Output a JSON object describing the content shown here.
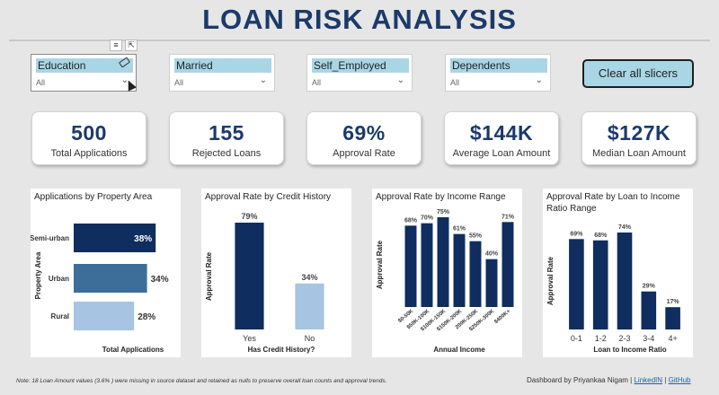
{
  "title": "LOAN RISK ANALYSIS",
  "slicers": [
    {
      "label": "Education",
      "value": "All"
    },
    {
      "label": "Married",
      "value": "All"
    },
    {
      "label": "Self_Employed",
      "value": "All"
    },
    {
      "label": "Dependents",
      "value": "All"
    }
  ],
  "clear_button": "Clear all slicers",
  "kpis": [
    {
      "value": "500",
      "caption": "Total Applications"
    },
    {
      "value": "155",
      "caption": "Rejected Loans"
    },
    {
      "value": "69%",
      "caption": "Approval Rate"
    },
    {
      "value": "$144K",
      "caption": "Average Loan Amount"
    },
    {
      "value": "$127K",
      "caption": "Median Loan Amount"
    }
  ],
  "chart_data": [
    {
      "type": "bar",
      "orientation": "horizontal",
      "title": "Applications by Property Area",
      "xlabel": "Total Applications",
      "ylabel": "Property Area",
      "categories": [
        "Semi-urban",
        "Urban",
        "Rural"
      ],
      "values": [
        38,
        34,
        28
      ],
      "data_labels": [
        "38%",
        "34%",
        "28%"
      ],
      "colors": [
        "#0f2d5e",
        "#3c6e99",
        "#a7c4e2"
      ]
    },
    {
      "type": "bar",
      "title": "Approval Rate by Credit History",
      "xlabel": "Has Credit History?",
      "ylabel": "Approval Rate",
      "categories": [
        "Yes",
        "No"
      ],
      "values": [
        79,
        34
      ],
      "data_labels": [
        "79%",
        "34%"
      ],
      "colors": [
        "#0f2d5e",
        "#a7c4e2"
      ]
    },
    {
      "type": "bar",
      "title": "Approval Rate by Income Range",
      "xlabel": "Annual Income",
      "ylabel": "Approval Rate",
      "categories": [
        "$0-50K",
        "$50K-100K",
        "$100K-150K",
        "$150K-200K",
        "200K-250K",
        "$250K-300K",
        "$400K+"
      ],
      "values": [
        68,
        70,
        75,
        61,
        55,
        40,
        71
      ],
      "data_labels": [
        "68%",
        "70%",
        "75%",
        "61%",
        "55%",
        "40%",
        "71%"
      ],
      "colors": [
        "#0f2d5e"
      ]
    },
    {
      "type": "bar",
      "title": "Approval Rate by Loan to Income Ratio Range",
      "xlabel": "Loan to Income Ratio",
      "ylabel": "Approval Rate",
      "categories": [
        "0-1",
        "1-2",
        "2-3",
        "3-4",
        "4+"
      ],
      "values": [
        69,
        68,
        74,
        29,
        17
      ],
      "data_labels": [
        "69%",
        "68%",
        "74%",
        "29%",
        "17%"
      ],
      "colors": [
        "#0f2d5e"
      ]
    }
  ],
  "footnote": "Note: 18 Loan Amount values (3.6% ) were missing in source dataset and retained as nulls to preserve overall loan counts and approval trends.",
  "credit": {
    "text": "Dashboard by Priyankaa Nigam |",
    "link1": "LinkedIN",
    "sep": "|",
    "link2": "GitHub"
  },
  "colors": {
    "title": "#1b3a6b",
    "slicer_header": "#a9d6e5",
    "bar_dark": "#0f2d5e"
  },
  "icons": {
    "visual_filter": "filter-icon",
    "visual_focus": "focus-mode-icon",
    "clear_slicer": "eraser-icon",
    "dropdown": "chevron-down-icon"
  }
}
